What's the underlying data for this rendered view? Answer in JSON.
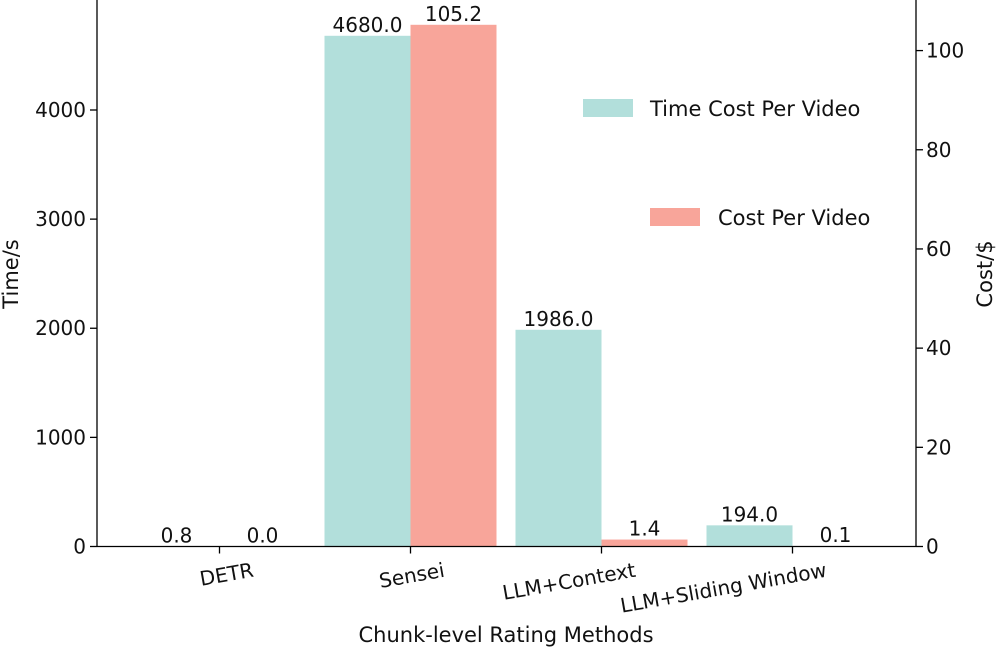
{
  "chart_data": {
    "type": "bar",
    "xlabel": "Chunk-level Rating Methods",
    "categories": [
      "DETR",
      "Sensei",
      "LLM+Context",
      "LLM+Sliding Window"
    ],
    "series": [
      {
        "name": "Time Cost Per Video",
        "axis": "left",
        "color": "#b2dfdb",
        "values": [
          0.8,
          4680.0,
          1986.0,
          194.0
        ],
        "labels": [
          "0.8",
          "4680.0",
          "1986.0",
          "194.0"
        ]
      },
      {
        "name": "Cost Per Video",
        "axis": "right",
        "color": "#f8a59a",
        "values": [
          0.0,
          105.2,
          1.4,
          0.1
        ],
        "labels": [
          "0.0",
          "105.2",
          "1.4",
          "0.1"
        ]
      }
    ],
    "y_left": {
      "label": "Time/s",
      "lim": [
        0,
        5008
      ],
      "ticks": [
        0,
        1000,
        2000,
        3000,
        4000
      ],
      "tick_labels": [
        "0",
        "1000",
        "2000",
        "3000",
        "4000"
      ]
    },
    "y_right": {
      "label": "Cost/$",
      "lim": [
        0,
        110.2
      ],
      "ticks": [
        0,
        20,
        40,
        60,
        80,
        100
      ],
      "tick_labels": [
        "0",
        "20",
        "40",
        "60",
        "80",
        "100"
      ]
    },
    "legend_position": "right"
  }
}
